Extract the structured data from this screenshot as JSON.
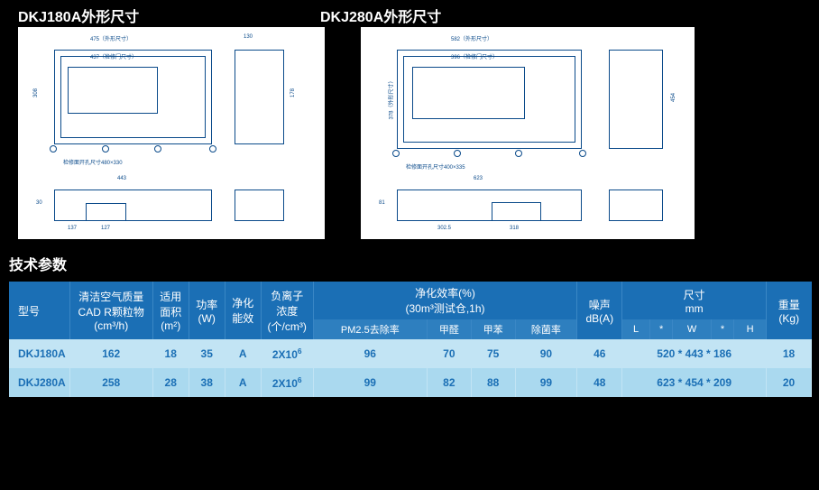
{
  "titles": {
    "left": "DKJ180A外形尺寸",
    "right": "DKJ280A外形尺寸",
    "tech": "技术参数"
  },
  "diagram_left": {
    "dim_w": "475（外形尺寸）",
    "dim_door": "437（检修门尺寸）",
    "dim_h": "308",
    "dim_side_w": "130",
    "bottom_note": "检修面开孔尺寸480×330",
    "profile_w": "443",
    "profile_a": "137",
    "profile_b": "127",
    "profile_h": "30",
    "side_h": "178"
  },
  "diagram_right": {
    "dim_w": "582（外形尺寸）",
    "dim_door": "396（检修门尺寸）",
    "dim_h": "378（外形尺寸）",
    "dim_side_h": "454",
    "bottom_note": "检修面开孔尺寸400×335",
    "profile_w": "623",
    "profile_a": "302.5",
    "profile_b": "318",
    "profile_h": "81"
  },
  "headers": {
    "model": "型号",
    "cadr": "清洁空气质量\nCAD R颗粒物\n(cm³/h)",
    "area": "适用\n面积\n(m²)",
    "power": "功率\n(W)",
    "eff": "净化\n能效",
    "ion": "负离子\n浓度\n(个/cm³)",
    "purify_group": "净化效率(%)\n(30m³测试仓,1h)",
    "noise": "噪声\ndB(A)",
    "size": "尺寸\nmm",
    "weight": "重量\n(Kg)",
    "sub_pm25": "PM2.5去除率",
    "sub_hcho": "甲醛",
    "sub_benzene": "甲苯",
    "sub_bacteria": "除菌率",
    "sub_L": "L",
    "sub_W": "W",
    "sub_H": "H",
    "star": "*"
  },
  "rows": [
    {
      "model": "DKJ180A",
      "cadr": "162",
      "area": "18",
      "power": "35",
      "eff": "A",
      "ion_base": "2X10",
      "ion_exp": "6",
      "pm25": "96",
      "hcho": "70",
      "benzene": "75",
      "bacteria": "90",
      "noise": "46",
      "L": "520",
      "W": "443",
      "H": "186",
      "weight": "18"
    },
    {
      "model": "DKJ280A",
      "cadr": "258",
      "area": "28",
      "power": "38",
      "eff": "A",
      "ion_base": "2X10",
      "ion_exp": "6",
      "pm25": "99",
      "hcho": "82",
      "benzene": "88",
      "bacteria": "99",
      "noise": "48",
      "L": "623",
      "W": "454",
      "H": "209",
      "weight": "20"
    }
  ],
  "style": {
    "header_bg": "#1b6fb5",
    "subhead_bg": "#2e7fbf",
    "row_bg": "#c2e4f4",
    "row_alt_bg": "#aad9ef",
    "row_fg": "#1b6fb5",
    "page_bg": "#000000",
    "title_color": "#ffffff",
    "diagram_line": "#0a4a8a"
  }
}
